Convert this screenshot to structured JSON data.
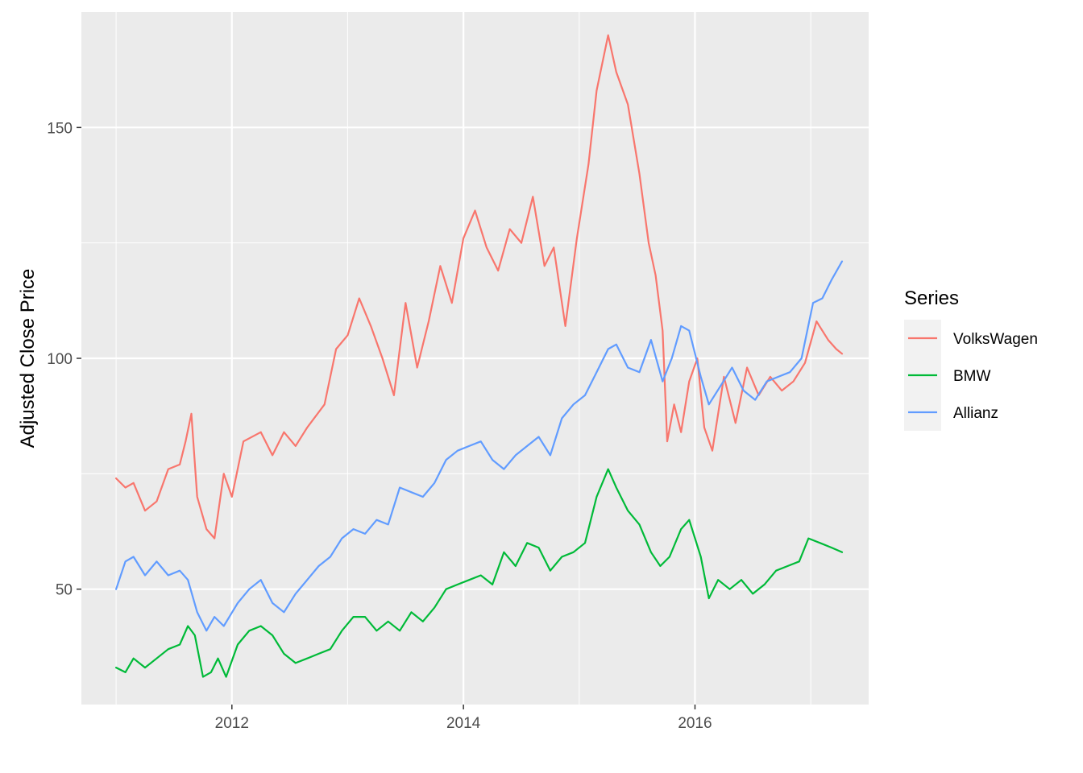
{
  "chart_data": {
    "type": "line",
    "title": "",
    "xlabel": "",
    "ylabel": "Adjusted Close Price",
    "xlim": [
      2010.7,
      2017.5
    ],
    "ylim": [
      25,
      175
    ],
    "x_ticks": [
      2012,
      2014,
      2016
    ],
    "x_tick_labels": [
      "2012",
      "2014",
      "2016"
    ],
    "y_ticks": [
      50,
      100,
      150
    ],
    "y_tick_labels": [
      "50",
      "100",
      "150"
    ],
    "grid": true,
    "legend": {
      "title": "Series",
      "position": "right"
    },
    "series": [
      {
        "name": "VolksWagen",
        "color": "#F8766D",
        "points": [
          [
            2011.0,
            74
          ],
          [
            2011.08,
            72
          ],
          [
            2011.15,
            73
          ],
          [
            2011.25,
            67
          ],
          [
            2011.35,
            69
          ],
          [
            2011.45,
            76
          ],
          [
            2011.55,
            77
          ],
          [
            2011.6,
            82
          ],
          [
            2011.65,
            88
          ],
          [
            2011.7,
            70
          ],
          [
            2011.78,
            63
          ],
          [
            2011.85,
            61
          ],
          [
            2011.93,
            75
          ],
          [
            2012.0,
            70
          ],
          [
            2012.1,
            82
          ],
          [
            2012.25,
            84
          ],
          [
            2012.35,
            79
          ],
          [
            2012.45,
            84
          ],
          [
            2012.55,
            81
          ],
          [
            2012.65,
            85
          ],
          [
            2012.8,
            90
          ],
          [
            2012.9,
            102
          ],
          [
            2013.0,
            105
          ],
          [
            2013.1,
            113
          ],
          [
            2013.2,
            107
          ],
          [
            2013.3,
            100
          ],
          [
            2013.4,
            92
          ],
          [
            2013.5,
            112
          ],
          [
            2013.6,
            98
          ],
          [
            2013.7,
            108
          ],
          [
            2013.8,
            120
          ],
          [
            2013.9,
            112
          ],
          [
            2014.0,
            126
          ],
          [
            2014.1,
            132
          ],
          [
            2014.2,
            124
          ],
          [
            2014.3,
            119
          ],
          [
            2014.4,
            128
          ],
          [
            2014.5,
            125
          ],
          [
            2014.6,
            135
          ],
          [
            2014.7,
            120
          ],
          [
            2014.78,
            124
          ],
          [
            2014.88,
            107
          ],
          [
            2014.98,
            126
          ],
          [
            2015.08,
            142
          ],
          [
            2015.15,
            158
          ],
          [
            2015.25,
            170
          ],
          [
            2015.32,
            162
          ],
          [
            2015.42,
            155
          ],
          [
            2015.52,
            140
          ],
          [
            2015.6,
            125
          ],
          [
            2015.66,
            118
          ],
          [
            2015.72,
            106
          ],
          [
            2015.76,
            82
          ],
          [
            2015.82,
            90
          ],
          [
            2015.88,
            84
          ],
          [
            2015.95,
            95
          ],
          [
            2016.02,
            100
          ],
          [
            2016.08,
            85
          ],
          [
            2016.15,
            80
          ],
          [
            2016.25,
            96
          ],
          [
            2016.35,
            86
          ],
          [
            2016.45,
            98
          ],
          [
            2016.55,
            92
          ],
          [
            2016.65,
            96
          ],
          [
            2016.75,
            93
          ],
          [
            2016.85,
            95
          ],
          [
            2016.95,
            99
          ],
          [
            2017.05,
            108
          ],
          [
            2017.15,
            104
          ],
          [
            2017.22,
            102
          ],
          [
            2017.27,
            101
          ]
        ]
      },
      {
        "name": "BMW",
        "color": "#00BA38",
        "points": [
          [
            2011.0,
            33
          ],
          [
            2011.08,
            32
          ],
          [
            2011.15,
            35
          ],
          [
            2011.25,
            33
          ],
          [
            2011.35,
            35
          ],
          [
            2011.45,
            37
          ],
          [
            2011.55,
            38
          ],
          [
            2011.62,
            42
          ],
          [
            2011.68,
            40
          ],
          [
            2011.75,
            31
          ],
          [
            2011.82,
            32
          ],
          [
            2011.88,
            35
          ],
          [
            2011.95,
            31
          ],
          [
            2012.05,
            38
          ],
          [
            2012.15,
            41
          ],
          [
            2012.25,
            42
          ],
          [
            2012.35,
            40
          ],
          [
            2012.45,
            36
          ],
          [
            2012.55,
            34
          ],
          [
            2012.65,
            35
          ],
          [
            2012.75,
            36
          ],
          [
            2012.85,
            37
          ],
          [
            2012.95,
            41
          ],
          [
            2013.05,
            44
          ],
          [
            2013.15,
            44
          ],
          [
            2013.25,
            41
          ],
          [
            2013.35,
            43
          ],
          [
            2013.45,
            41
          ],
          [
            2013.55,
            45
          ],
          [
            2013.65,
            43
          ],
          [
            2013.75,
            46
          ],
          [
            2013.85,
            50
          ],
          [
            2013.95,
            51
          ],
          [
            2014.05,
            52
          ],
          [
            2014.15,
            53
          ],
          [
            2014.25,
            51
          ],
          [
            2014.35,
            58
          ],
          [
            2014.45,
            55
          ],
          [
            2014.55,
            60
          ],
          [
            2014.65,
            59
          ],
          [
            2014.75,
            54
          ],
          [
            2014.85,
            57
          ],
          [
            2014.95,
            58
          ],
          [
            2015.05,
            60
          ],
          [
            2015.15,
            70
          ],
          [
            2015.25,
            76
          ],
          [
            2015.32,
            72
          ],
          [
            2015.42,
            67
          ],
          [
            2015.52,
            64
          ],
          [
            2015.62,
            58
          ],
          [
            2015.7,
            55
          ],
          [
            2015.78,
            57
          ],
          [
            2015.88,
            63
          ],
          [
            2015.95,
            65
          ],
          [
            2016.05,
            57
          ],
          [
            2016.12,
            48
          ],
          [
            2016.2,
            52
          ],
          [
            2016.3,
            50
          ],
          [
            2016.4,
            52
          ],
          [
            2016.5,
            49
          ],
          [
            2016.6,
            51
          ],
          [
            2016.7,
            54
          ],
          [
            2016.8,
            55
          ],
          [
            2016.9,
            56
          ],
          [
            2016.98,
            61
          ],
          [
            2017.08,
            60
          ],
          [
            2017.18,
            59
          ],
          [
            2017.27,
            58
          ]
        ]
      },
      {
        "name": "Allianz",
        "color": "#619CFF",
        "points": [
          [
            2011.0,
            50
          ],
          [
            2011.08,
            56
          ],
          [
            2011.15,
            57
          ],
          [
            2011.25,
            53
          ],
          [
            2011.35,
            56
          ],
          [
            2011.45,
            53
          ],
          [
            2011.55,
            54
          ],
          [
            2011.62,
            52
          ],
          [
            2011.7,
            45
          ],
          [
            2011.78,
            41
          ],
          [
            2011.85,
            44
          ],
          [
            2011.93,
            42
          ],
          [
            2012.05,
            47
          ],
          [
            2012.15,
            50
          ],
          [
            2012.25,
            52
          ],
          [
            2012.35,
            47
          ],
          [
            2012.45,
            45
          ],
          [
            2012.55,
            49
          ],
          [
            2012.65,
            52
          ],
          [
            2012.75,
            55
          ],
          [
            2012.85,
            57
          ],
          [
            2012.95,
            61
          ],
          [
            2013.05,
            63
          ],
          [
            2013.15,
            62
          ],
          [
            2013.25,
            65
          ],
          [
            2013.35,
            64
          ],
          [
            2013.45,
            72
          ],
          [
            2013.55,
            71
          ],
          [
            2013.65,
            70
          ],
          [
            2013.75,
            73
          ],
          [
            2013.85,
            78
          ],
          [
            2013.95,
            80
          ],
          [
            2014.05,
            81
          ],
          [
            2014.15,
            82
          ],
          [
            2014.25,
            78
          ],
          [
            2014.35,
            76
          ],
          [
            2014.45,
            79
          ],
          [
            2014.55,
            81
          ],
          [
            2014.65,
            83
          ],
          [
            2014.75,
            79
          ],
          [
            2014.85,
            87
          ],
          [
            2014.95,
            90
          ],
          [
            2015.05,
            92
          ],
          [
            2015.15,
            97
          ],
          [
            2015.25,
            102
          ],
          [
            2015.32,
            103
          ],
          [
            2015.42,
            98
          ],
          [
            2015.52,
            97
          ],
          [
            2015.62,
            104
          ],
          [
            2015.72,
            95
          ],
          [
            2015.8,
            100
          ],
          [
            2015.88,
            107
          ],
          [
            2015.95,
            106
          ],
          [
            2016.05,
            96
          ],
          [
            2016.12,
            90
          ],
          [
            2016.22,
            94
          ],
          [
            2016.32,
            98
          ],
          [
            2016.42,
            93
          ],
          [
            2016.52,
            91
          ],
          [
            2016.62,
            95
          ],
          [
            2016.72,
            96
          ],
          [
            2016.82,
            97
          ],
          [
            2016.92,
            100
          ],
          [
            2017.02,
            112
          ],
          [
            2017.1,
            113
          ],
          [
            2017.18,
            117
          ],
          [
            2017.27,
            121
          ]
        ]
      }
    ]
  }
}
